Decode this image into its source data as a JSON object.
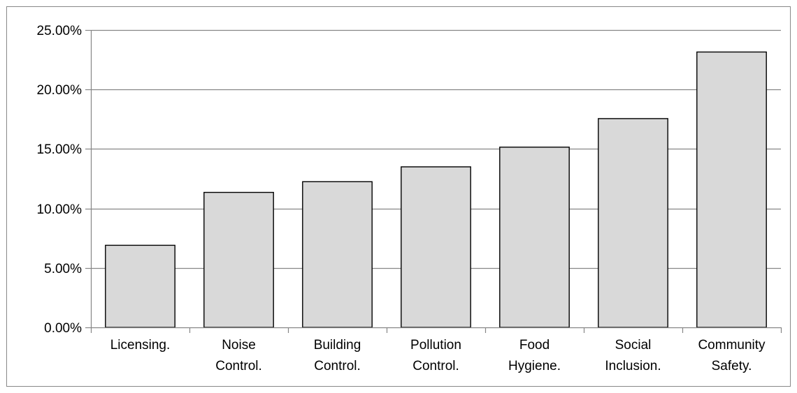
{
  "chart_data": {
    "type": "bar",
    "title": "",
    "xlabel": "",
    "ylabel": "",
    "categories": [
      [
        "Licensing."
      ],
      [
        "Noise",
        "Control."
      ],
      [
        "Building",
        "Control."
      ],
      [
        "Pollution",
        "Control."
      ],
      [
        "Food",
        "Hygiene."
      ],
      [
        "Social",
        "Inclusion."
      ],
      [
        "Community",
        "Safety."
      ]
    ],
    "values": [
      6.9,
      11.35,
      12.25,
      13.5,
      15.15,
      17.55,
      23.15
    ],
    "value_format": "percent",
    "ylim": [
      0,
      25
    ],
    "yticks": [
      "0.00%",
      "5.00%",
      "10.00%",
      "15.00%",
      "20.00%",
      "25.00%"
    ],
    "grid": "horizontal",
    "legend": "none",
    "colors": {
      "bar_fill": "#d9d9d9",
      "bar_stroke": "#000000",
      "grid": "#868686",
      "axis": "#868686"
    }
  }
}
